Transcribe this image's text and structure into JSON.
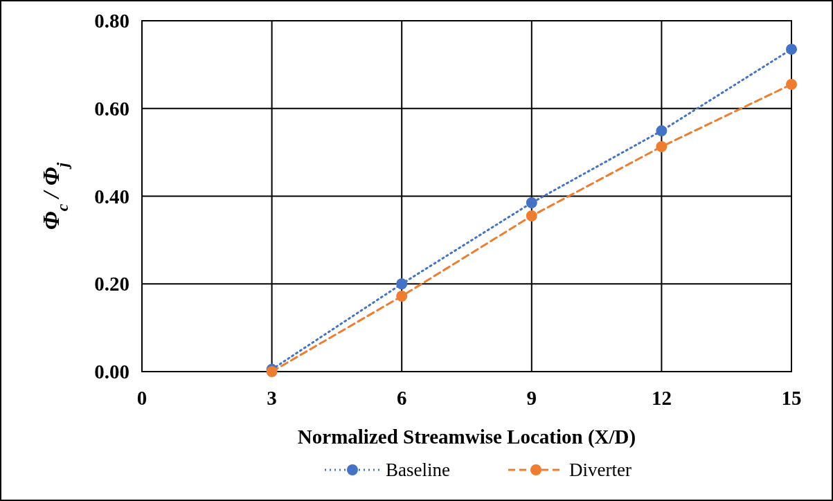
{
  "chart_data": {
    "type": "line",
    "xlabel": "Normalized Streamwise Location (X/D)",
    "ylabel": "Φ$_{c}$ / Φ$_{j}$",
    "x": [
      3,
      6,
      9,
      12,
      15
    ],
    "series": [
      {
        "name": "Baseline",
        "color": "#4472c4",
        "line_style": "dotted",
        "values": [
          0.005,
          0.2,
          0.385,
          0.549,
          0.735
        ]
      },
      {
        "name": "Diverter",
        "color": "#ed7d31",
        "line_style": "dashed",
        "values": [
          0,
          0.172,
          0.355,
          0.513,
          0.655
        ]
      }
    ],
    "xlim": [
      0,
      15
    ],
    "xticks": [
      0,
      3,
      6,
      9,
      12,
      15
    ],
    "ylim": [
      0,
      0.8
    ],
    "yticks": [
      {
        "value": 0,
        "label": "0.00"
      },
      {
        "value": 0.2,
        "label": "0.20"
      },
      {
        "value": 0.4,
        "label": "0.40"
      },
      {
        "value": 0.6,
        "label": "0.60"
      },
      {
        "value": 0.8,
        "label": "0.80"
      }
    ],
    "grid": true,
    "legend": "bottom",
    "marker": "circle"
  }
}
